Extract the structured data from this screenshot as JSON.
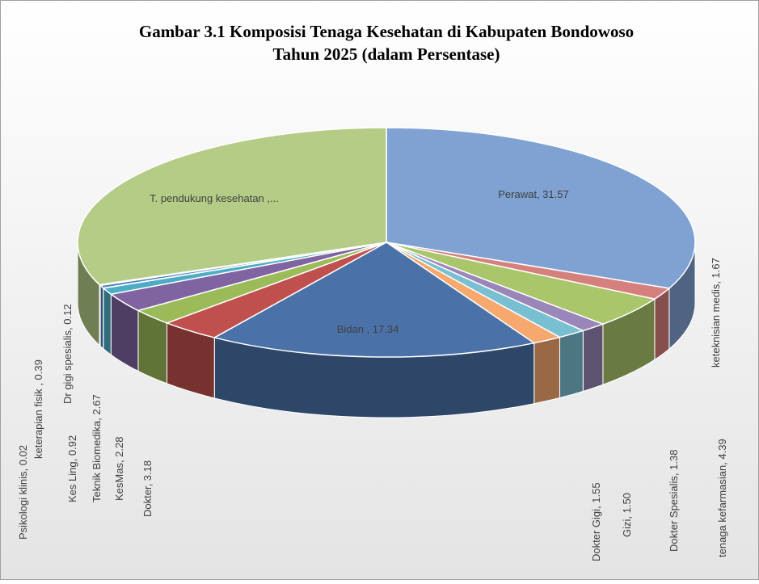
{
  "chart_data": {
    "type": "pie3d",
    "title": [
      "Gambar 3.1 Komposisi Tenaga Kesehatan di Kabupaten Bondowoso",
      "Tahun 2025 (dalam Persentase)"
    ],
    "labels": [
      "Perawat, 31.57",
      "keteknisian medis, 1.67",
      "tenaga kefarmasian, 4.39",
      "Dokter Spesialis, 1.38",
      "Gizi, 1.50",
      "Dokter Gigi, 1.55",
      "Bidan , 17.34",
      "Dokter, 3.18",
      "KesMas, 2.28",
      "Teknik Biomedika, 2.67",
      "Kes Ling, 0.92",
      "Psikologi klinis, 0.02",
      "keterapian fisik , 0.39",
      "Dr gigi spesialis, 0.12",
      "T. pendukung kesehatan ,..."
    ],
    "values": [
      31.57,
      1.67,
      4.39,
      1.38,
      1.5,
      1.55,
      17.34,
      3.18,
      2.28,
      2.67,
      0.92,
      0.02,
      0.39,
      0.12,
      31.02
    ],
    "colors": [
      "#7fa2d2",
      "#d6807e",
      "#a9c66a",
      "#9a86b8",
      "#79bfd2",
      "#f6a86e",
      "#4a72a8",
      "#c0504d",
      "#9bbb59",
      "#8064a2",
      "#4bacc6",
      "#f79646",
      "#4f81bd",
      "#c0504d",
      "#b5cc87"
    ]
  }
}
